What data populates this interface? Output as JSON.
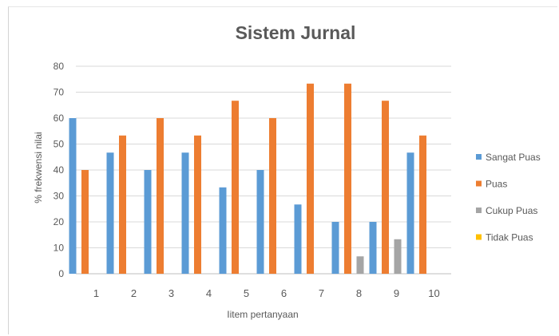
{
  "chart_data": {
    "type": "bar",
    "title": "Sistem Jurnal",
    "xlabel": "Iitem pertanyaan",
    "ylabel": "% frekwensi nilai",
    "ylim": [
      0,
      80
    ],
    "yticks": [
      0,
      10,
      20,
      30,
      40,
      50,
      60,
      70,
      80
    ],
    "grid": true,
    "legend_position": "right",
    "categories": [
      "1",
      "2",
      "3",
      "4",
      "5",
      "6",
      "7",
      "8",
      "9",
      "10"
    ],
    "series": [
      {
        "name": "Sangat Puas",
        "color": "#5b9bd5",
        "values": [
          60,
          46.7,
          40,
          46.7,
          33.3,
          40,
          26.7,
          20,
          20,
          46.7
        ]
      },
      {
        "name": "Puas",
        "color": "#ed7d31",
        "values": [
          40,
          53.3,
          60,
          53.3,
          66.7,
          60,
          73.3,
          73.3,
          66.7,
          53.3
        ]
      },
      {
        "name": "Cukup Puas",
        "color": "#a5a5a5",
        "values": [
          0,
          0,
          0,
          0,
          0,
          0,
          0,
          6.7,
          13.3,
          0
        ]
      },
      {
        "name": "Tidak Puas",
        "color": "#ffc000",
        "values": [
          0,
          0,
          0,
          0,
          0,
          0,
          0,
          0,
          0,
          0
        ]
      }
    ]
  }
}
